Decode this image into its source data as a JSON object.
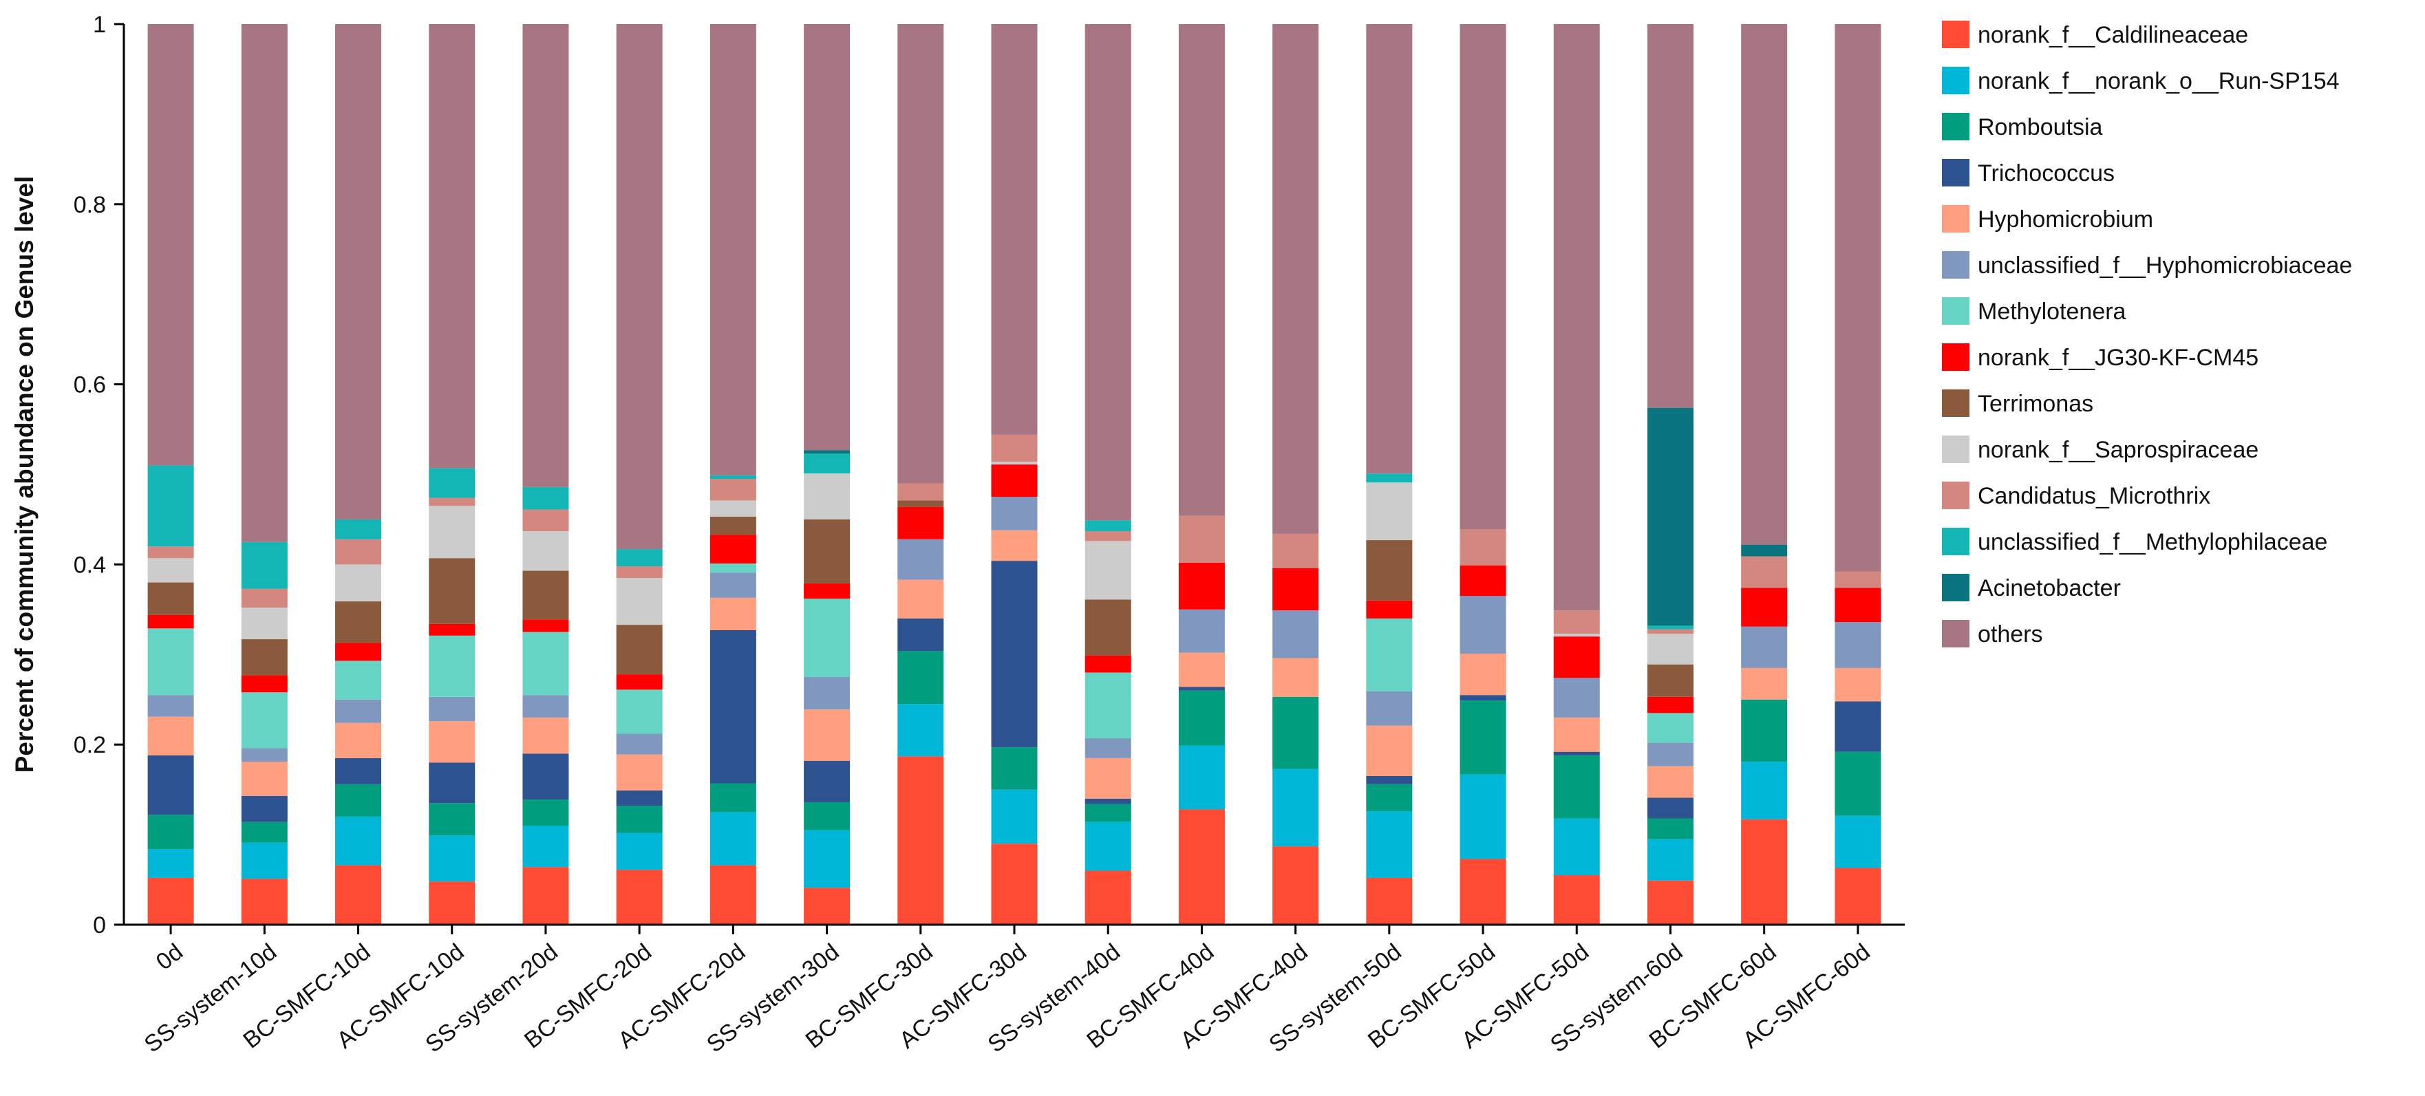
{
  "chart_data": {
    "type": "bar",
    "stacked": true,
    "title": "",
    "xlabel": "",
    "ylabel": "Percent of community abundance on Genus level",
    "ylim": [
      0,
      1
    ],
    "yticks": [
      "0",
      "0.2",
      "0.4",
      "0.6",
      "0.8",
      "1"
    ],
    "legend_position": "right",
    "categories": [
      "0d",
      "SS-system-10d",
      "BC-SMFC-10d",
      "AC-SMFC-10d",
      "SS-system-20d",
      "BC-SMFC-20d",
      "AC-SMFC-20d",
      "SS-system-30d",
      "BC-SMFC-30d",
      "AC-SMFC-30d",
      "SS-system-40d",
      "BC-SMFC-40d",
      "AC-SMFC-40d",
      "SS-system-50d",
      "BC-SMFC-50d",
      "AC-SMFC-50d",
      "SS-system-60d",
      "BC-SMFC-60d",
      "AC-SMFC-60d"
    ],
    "series": [
      {
        "name": "norank_f__Caldilineaceae",
        "color": "#FF4B33",
        "values": [
          0.052,
          0.051,
          0.066,
          0.048,
          0.064,
          0.061,
          0.066,
          0.041,
          0.187,
          0.09,
          0.06,
          0.128,
          0.087,
          0.052,
          0.073,
          0.055,
          0.049,
          0.117,
          0.063
        ]
      },
      {
        "name": "norank_f__norank_o__Run-SP154",
        "color": "#00B7D8",
        "values": [
          0.032,
          0.04,
          0.054,
          0.051,
          0.046,
          0.041,
          0.059,
          0.064,
          0.058,
          0.06,
          0.054,
          0.071,
          0.086,
          0.074,
          0.094,
          0.063,
          0.046,
          0.064,
          0.058
        ]
      },
      {
        "name": "Romboutsia",
        "color": "#009E7F",
        "values": [
          0.038,
          0.023,
          0.036,
          0.036,
          0.029,
          0.03,
          0.032,
          0.031,
          0.059,
          0.047,
          0.02,
          0.061,
          0.08,
          0.03,
          0.082,
          0.07,
          0.023,
          0.069,
          0.071
        ]
      },
      {
        "name": "Trichococcus",
        "color": "#2D5290",
        "values": [
          0.066,
          0.029,
          0.029,
          0.045,
          0.051,
          0.017,
          0.17,
          0.046,
          0.036,
          0.207,
          0.006,
          0.004,
          0.0,
          0.009,
          0.006,
          0.004,
          0.023,
          0.0,
          0.056
        ]
      },
      {
        "name": "Hyphomicrobium",
        "color": "#FF9F7F",
        "values": [
          0.043,
          0.038,
          0.039,
          0.046,
          0.04,
          0.04,
          0.036,
          0.057,
          0.043,
          0.034,
          0.045,
          0.038,
          0.043,
          0.056,
          0.046,
          0.038,
          0.035,
          0.035,
          0.037
        ]
      },
      {
        "name": "unclassified_f__Hyphomicrobiaceae",
        "color": "#8098C0",
        "values": [
          0.024,
          0.015,
          0.026,
          0.027,
          0.025,
          0.023,
          0.028,
          0.036,
          0.045,
          0.037,
          0.022,
          0.048,
          0.053,
          0.038,
          0.064,
          0.044,
          0.026,
          0.046,
          0.051
        ]
      },
      {
        "name": "Methylotenera",
        "color": "#66D4C4",
        "values": [
          0.074,
          0.062,
          0.043,
          0.068,
          0.07,
          0.049,
          0.01,
          0.087,
          0.0,
          0.0,
          0.073,
          0.0,
          0.0,
          0.081,
          0.0,
          0.0,
          0.033,
          0.0,
          0.0
        ]
      },
      {
        "name": "norank_f__JG30-KF-CM45",
        "color": "#FF0000",
        "values": [
          0.015,
          0.019,
          0.02,
          0.013,
          0.014,
          0.017,
          0.032,
          0.017,
          0.036,
          0.036,
          0.019,
          0.052,
          0.047,
          0.02,
          0.034,
          0.046,
          0.018,
          0.043,
          0.038
        ]
      },
      {
        "name": "Terrimonas",
        "color": "#8B5A3C",
        "values": [
          0.036,
          0.04,
          0.046,
          0.073,
          0.054,
          0.055,
          0.02,
          0.071,
          0.007,
          0.0,
          0.062,
          0.0,
          0.0,
          0.067,
          0.0,
          0.0,
          0.036,
          0.0,
          0.0
        ]
      },
      {
        "name": "norank_f__Saprospiraceae",
        "color": "#CCCCCC",
        "values": [
          0.027,
          0.035,
          0.041,
          0.058,
          0.044,
          0.052,
          0.018,
          0.051,
          0.0,
          0.003,
          0.065,
          0.0,
          0.0,
          0.064,
          0.0,
          0.003,
          0.034,
          0.0,
          0.0
        ]
      },
      {
        "name": "Candidatus_Microthrix",
        "color": "#D4877F",
        "values": [
          0.013,
          0.021,
          0.028,
          0.009,
          0.024,
          0.013,
          0.024,
          0.0,
          0.019,
          0.03,
          0.011,
          0.052,
          0.038,
          0.0,
          0.04,
          0.026,
          0.005,
          0.035,
          0.018
        ]
      },
      {
        "name": "unclassified_f__Methylophilaceae",
        "color": "#14B5B5",
        "values": [
          0.09,
          0.052,
          0.022,
          0.033,
          0.025,
          0.019,
          0.004,
          0.022,
          0.0,
          0.0,
          0.012,
          0.0,
          0.0,
          0.01,
          0.0,
          0.0,
          0.004,
          0.0,
          0.0
        ]
      },
      {
        "name": "Acinetobacter",
        "color": "#0A7580",
        "values": [
          0.0,
          0.0,
          0.0,
          0.0,
          0.0,
          0.0,
          0.0,
          0.004,
          0.0,
          0.0,
          0.0,
          0.0,
          0.0,
          0.0,
          0.0,
          0.0,
          0.242,
          0.013,
          0.0
        ]
      },
      {
        "name": "others",
        "color": "#A87582",
        "values": [
          0.49,
          0.575,
          0.55,
          0.493,
          0.514,
          0.583,
          0.501,
          0.473,
          0.51,
          0.456,
          0.551,
          0.546,
          0.566,
          0.499,
          0.561,
          0.653,
          0.426,
          0.578,
          0.608
        ]
      }
    ]
  }
}
